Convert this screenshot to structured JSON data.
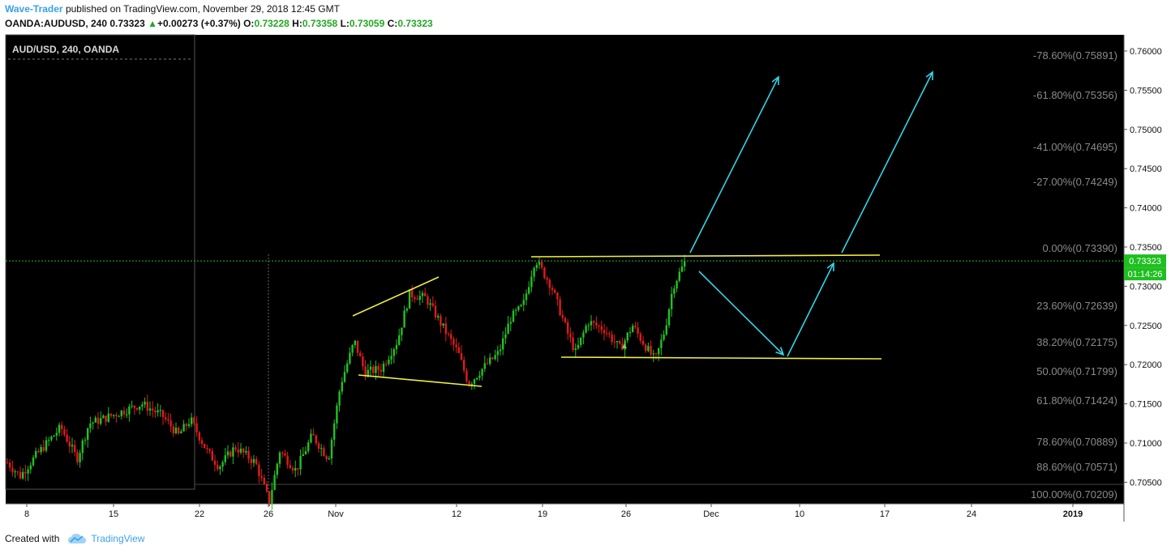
{
  "header": {
    "author": "Wave-Trader",
    "published_text": "published on TradingView.com, November 29, 2018 12:45 GMT",
    "symbol": "OANDA:AUDUSD, 240",
    "last": "0.73323",
    "change": "+0.00273 (+0.37%)",
    "o_label": "O:",
    "o_value": "0.73228",
    "h_label": "H:",
    "h_value": "0.73358",
    "l_label": "L:",
    "l_value": "0.73059",
    "c_label": "C:",
    "c_value": "0.73323"
  },
  "footer": {
    "created_with": "Created with",
    "brand": "TradingView"
  },
  "chart_data": {
    "type": "candlestick",
    "symbol_label": "AUD/USD, 240, OANDA",
    "x_tick_labels": [
      "8",
      "15",
      "22",
      "26",
      "Nov",
      "12",
      "19",
      "26",
      "Dec",
      "10",
      "17",
      "24",
      "2019"
    ],
    "y_ticks": [
      "0.76000",
      "0.75500",
      "0.75000",
      "0.74500",
      "0.74000",
      "0.73500",
      "0.73000",
      "0.72500",
      "0.72000",
      "0.71500",
      "0.71000",
      "0.70500"
    ],
    "price_tag": "0.73323",
    "countdown_tag": "01:14:26",
    "fibonacci_levels": [
      {
        "label": "-78.60%(0.75891)",
        "price": 0.75891
      },
      {
        "label": "-61.80%(0.75356)",
        "price": 0.75356
      },
      {
        "label": "-41.00%(0.74695)",
        "price": 0.74695
      },
      {
        "label": "-27.00%(0.74249)",
        "price": 0.74249
      },
      {
        "label": "0.00%(0.73390)",
        "price": 0.7339
      },
      {
        "label": "23.60%(0.72639)",
        "price": 0.72639
      },
      {
        "label": "38.20%(0.72175)",
        "price": 0.72175
      },
      {
        "label": "50.00%(0.71799)",
        "price": 0.71799
      },
      {
        "label": "61.80%(0.71424)",
        "price": 0.71424
      },
      {
        "label": "78.60%(0.70889)",
        "price": 0.70889
      },
      {
        "label": "88.60%(0.70571)",
        "price": 0.70571
      },
      {
        "label": "100.00%(0.70209)",
        "price": 0.70209
      }
    ],
    "last_price": 0.73323,
    "colors": {
      "background": "#000000",
      "up": "#22c222",
      "down": "#e01b1b",
      "trendline": "#f0f040",
      "arrow": "#35d4e8",
      "price_line": "#1fbf1f"
    }
  }
}
